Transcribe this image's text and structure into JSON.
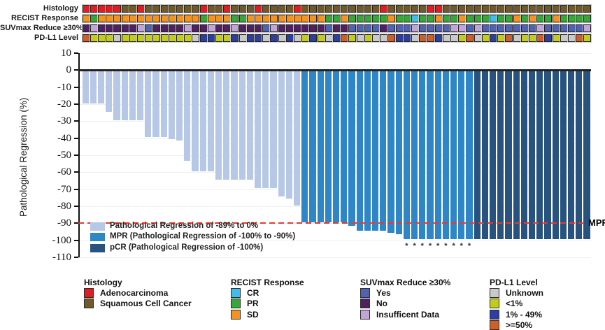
{
  "palette": {
    "histology": {
      "adeno": "#DF1E23",
      "sqcc": "#70592A"
    },
    "recist": {
      "cr": "#3FBEEE",
      "pr": "#37A837",
      "sd": "#F6921E"
    },
    "suv": {
      "yes": "#5262B2",
      "no": "#522060",
      "ins": "#C2A5D8"
    },
    "pdl1": {
      "unk": "#C9C9C9",
      "lt1": "#C3CC1D",
      "mid": "#2D3F9E",
      "hi": "#CE5F2A"
    },
    "bars": {
      "light": "#B7C7E6",
      "mpr": "#2E86C7",
      "pcr": "#27537E"
    },
    "mpr_line": "#EA392E"
  },
  "annotation_tracks": [
    {
      "label": "Histology",
      "palette": "histology",
      "cells": [
        "adeno",
        "adeno",
        "adeno",
        "adeno",
        "adeno",
        "sqcc",
        "sqcc",
        "adeno",
        "sqcc",
        "sqcc",
        "sqcc",
        "sqcc",
        "sqcc",
        "sqcc",
        "sqcc",
        "adeno",
        "sqcc",
        "sqcc",
        "adeno",
        "sqcc",
        "sqcc",
        "sqcc",
        "adeno",
        "sqcc",
        "sqcc",
        "sqcc",
        "sqcc",
        "adeno",
        "sqcc",
        "sqcc",
        "sqcc",
        "sqcc",
        "sqcc",
        "sqcc",
        "sqcc",
        "sqcc",
        "sqcc",
        "sqcc",
        "adeno",
        "sqcc",
        "sqcc",
        "sqcc",
        "sqcc",
        "sqcc",
        "adeno",
        "adeno",
        "sqcc",
        "sqcc",
        "sqcc",
        "sqcc",
        "sqcc",
        "sqcc",
        "sqcc",
        "sqcc",
        "sqcc",
        "sqcc",
        "sqcc",
        "sqcc",
        "sqcc",
        "sqcc",
        "sqcc",
        "sqcc",
        "sqcc",
        "sqcc",
        "sqcc"
      ]
    },
    {
      "label": "RECIST Response",
      "palette": "recist",
      "cells": [
        "sd",
        "pr",
        "sd",
        "sd",
        "sd",
        "sd",
        "sd",
        "sd",
        "sd",
        "sd",
        "sd",
        "sd",
        "sd",
        "sd",
        "sd",
        "pr",
        "sd",
        "sd",
        "sd",
        "pr",
        "pr",
        "sd",
        "sd",
        "sd",
        "sd",
        "sd",
        "sd",
        "sd",
        "sd",
        "sd",
        "sd",
        "pr",
        "pr",
        "sd",
        "pr",
        "pr",
        "pr",
        "pr",
        "pr",
        "sd",
        "pr",
        "pr",
        "cr",
        "pr",
        "pr",
        "sd",
        "pr",
        "pr",
        "sd",
        "pr",
        "pr",
        "pr",
        "cr",
        "pr",
        "pr",
        "sd",
        "pr",
        "sd",
        "pr",
        "pr",
        "sd",
        "pr",
        "pr",
        "pr",
        "pr"
      ]
    },
    {
      "label": "SUVmax Reduce ≥30%",
      "palette": "suv",
      "cells": [
        "no",
        "ins",
        "no",
        "no",
        "no",
        "no",
        "no",
        "ins",
        "yes",
        "no",
        "no",
        "no",
        "no",
        "ins",
        "no",
        "no",
        "ins",
        "no",
        "no",
        "ins",
        "no",
        "no",
        "no",
        "yes",
        "ins",
        "no",
        "no",
        "no",
        "no",
        "no",
        "no",
        "yes",
        "no",
        "no",
        "yes",
        "yes",
        "yes",
        "yes",
        "no",
        "yes",
        "yes",
        "yes",
        "ins",
        "yes",
        "yes",
        "yes",
        "yes",
        "ins",
        "ins",
        "yes",
        "ins",
        "yes",
        "yes",
        "yes",
        "yes",
        "yes",
        "yes",
        "yes",
        "ins",
        "yes",
        "yes",
        "yes",
        "yes",
        "yes",
        "ins"
      ]
    },
    {
      "label": "PD-L1 Level",
      "palette": "pdl1",
      "cells": [
        "hi",
        "lt1",
        "lt1",
        "lt1",
        "unk",
        "lt1",
        "lt1",
        "lt1",
        "lt1",
        "lt1",
        "lt1",
        "lt1",
        "lt1",
        "lt1",
        "unk",
        "mid",
        "mid",
        "lt1",
        "lt1",
        "mid",
        "unk",
        "mid",
        "mid",
        "unk",
        "mid",
        "unk",
        "mid",
        "unk",
        "lt1",
        "mid",
        "lt1",
        "unk",
        "mid",
        "hi",
        "lt1",
        "unk",
        "lt1",
        "unk",
        "unk",
        "hi",
        "mid",
        "mid",
        "unk",
        "hi",
        "hi",
        "mid",
        "unk",
        "unk",
        "lt1",
        "hi",
        "unk",
        "lt1",
        "mid",
        "lt1",
        "hi",
        "unk",
        "lt1",
        "lt1",
        "hi",
        "mid",
        "lt1",
        "unk",
        "unk",
        "hi",
        "lt1"
      ]
    }
  ],
  "chart_data": {
    "type": "bar",
    "title": "",
    "xlabel": "",
    "ylabel": "Pathological Regression (%)",
    "ylim": [
      -110,
      10
    ],
    "yticks": [
      10,
      0,
      -10,
      -20,
      -30,
      -40,
      -50,
      -60,
      -70,
      -80,
      -90,
      -100,
      -110
    ],
    "grid": "faint horizontal",
    "series": [
      {
        "name": "Pathological regression per patient",
        "values": [
          -20,
          -20,
          -20,
          -25,
          -30,
          -30,
          -30,
          -30,
          -40,
          -40,
          -40,
          -41,
          -42,
          -54,
          -60,
          -60,
          -60,
          -65,
          -65,
          -65,
          -65,
          -65,
          -70,
          -70,
          -70,
          -75,
          -76,
          -80,
          -90,
          -90,
          -90,
          -90,
          -90,
          -90,
          -92,
          -95,
          -95,
          -95,
          -95,
          -96,
          -97,
          -100,
          -100,
          -100,
          -100,
          -100,
          -100,
          -100,
          -100,
          -100,
          -100,
          -100,
          -100,
          -100,
          -100,
          -100,
          -100,
          -100,
          -100,
          -100,
          -100,
          -100,
          -100,
          -100,
          -100
        ]
      }
    ],
    "bar_categories": [
      "light",
      "light",
      "light",
      "light",
      "light",
      "light",
      "light",
      "light",
      "light",
      "light",
      "light",
      "light",
      "light",
      "light",
      "light",
      "light",
      "light",
      "light",
      "light",
      "light",
      "light",
      "light",
      "light",
      "light",
      "light",
      "light",
      "light",
      "light",
      "mpr",
      "mpr",
      "mpr",
      "mpr",
      "mpr",
      "mpr",
      "mpr",
      "mpr",
      "mpr",
      "mpr",
      "mpr",
      "mpr",
      "mpr",
      "mpr",
      "mpr",
      "mpr",
      "mpr",
      "mpr",
      "mpr",
      "mpr",
      "mpr",
      "mpr",
      "pcr",
      "pcr",
      "pcr",
      "pcr",
      "pcr",
      "pcr",
      "pcr",
      "pcr",
      "pcr",
      "pcr",
      "pcr",
      "pcr",
      "pcr",
      "pcr",
      "pcr"
    ],
    "asterisk_bar_indices": [
      41,
      42,
      43,
      44,
      45,
      46,
      47,
      48,
      49
    ],
    "asterisk_symbol": "*",
    "reference_line": {
      "y": -90,
      "label": "MPR",
      "style": "red dashed"
    }
  },
  "plot_legend": {
    "palette": "bars",
    "items": [
      {
        "key": "light",
        "label": "Pathological Regression of -89% to 0%"
      },
      {
        "key": "mpr",
        "label": "MPR (Pathological Regression of -100% to -90%)"
      },
      {
        "key": "pcr",
        "label": "pCR (Pathological Regression of -100%)"
      }
    ]
  },
  "bottom_legend": {
    "groups": [
      {
        "title": "Histology",
        "palette": "histology",
        "items": [
          {
            "key": "adeno",
            "label": "Adenocarcinoma"
          },
          {
            "key": "sqcc",
            "label": "Squamous Cell Cancer"
          }
        ]
      },
      {
        "title": "RECIST Response",
        "palette": "recist",
        "items": [
          {
            "key": "cr",
            "label": "CR"
          },
          {
            "key": "pr",
            "label": "PR"
          },
          {
            "key": "sd",
            "label": "SD"
          }
        ]
      },
      {
        "title": "SUVmax Reduce ≥30%",
        "palette": "suv",
        "items": [
          {
            "key": "yes",
            "label": "Yes"
          },
          {
            "key": "no",
            "label": "No"
          },
          {
            "key": "ins",
            "label": "Insufficent Data"
          }
        ]
      },
      {
        "title": "PD-L1 Level",
        "palette": "pdl1",
        "items": [
          {
            "key": "unk",
            "label": "Unknown"
          },
          {
            "key": "lt1",
            "label": "<1%"
          },
          {
            "key": "mid",
            "label": "1% - 49%"
          },
          {
            "key": "hi",
            "label": ">=50%"
          }
        ]
      }
    ]
  }
}
